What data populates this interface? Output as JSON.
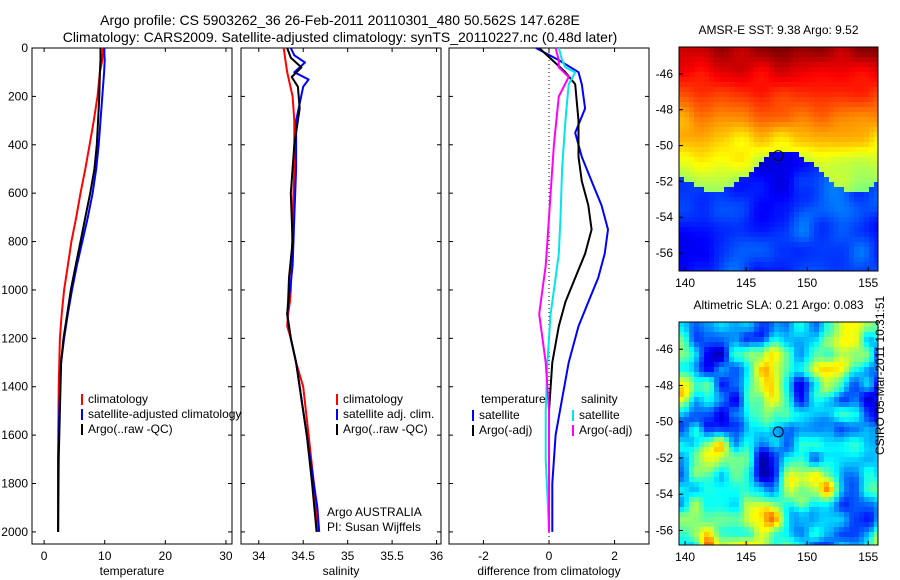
{
  "title": {
    "line1": "Argo profile: CS 5903262_36 26-Feb-2011 20110301_480 50.562S 147.628E",
    "line2": "Climatology: CARS2009. Satellite-adjusted climatology: synTS_20110227.nc (0.48d later)"
  },
  "stamp": "CSIRO 05-Mar-2011 10:31:51",
  "colors": {
    "climatology": "#ff0000",
    "satellite": "#0000ff",
    "argo": "#000000",
    "sat_diff": "#00e5ee",
    "argo_adj": "#ff00ff"
  },
  "chart_data": [
    {
      "type": "line",
      "id": "temperature",
      "xlabel": "temperature",
      "xlim": [
        -2,
        31
      ],
      "ylim": [
        0,
        2050
      ],
      "xticks": [
        0,
        10,
        20,
        30
      ],
      "yticks": [
        0,
        200,
        400,
        600,
        800,
        1000,
        1200,
        1400,
        1600,
        1800,
        2000
      ],
      "legend": [
        "climatology",
        "satellite-adjusted climatology",
        "Argo(..raw -QC)"
      ],
      "series": [
        {
          "name": "climatology",
          "color": "#ff0000",
          "x": [
            9.7,
            9.6,
            9.2,
            8.8,
            8.2,
            7.5,
            6.8,
            6.0,
            5.3,
            4.5,
            3.9,
            3.3,
            2.9,
            2.6,
            2.4,
            2.3,
            2.3
          ],
          "y": [
            0,
            50,
            100,
            200,
            300,
            400,
            500,
            600,
            700,
            800,
            900,
            1000,
            1100,
            1200,
            1400,
            1700,
            2000
          ]
        },
        {
          "name": "satellite-adjusted climatology",
          "color": "#0000ff",
          "x": [
            9.9,
            10.0,
            9.9,
            9.6,
            9.3,
            9.0,
            8.6,
            8.0,
            7.2,
            6.3,
            5.4,
            4.6,
            3.9,
            3.3,
            2.8,
            2.5,
            2.3,
            2.3
          ],
          "y": [
            0,
            50,
            100,
            200,
            300,
            400,
            500,
            600,
            700,
            800,
            900,
            1000,
            1100,
            1200,
            1300,
            1500,
            1700,
            2000
          ]
        },
        {
          "name": "Argo(..raw -QC)",
          "color": "#000000",
          "x": [
            9.3,
            9.3,
            9.2,
            9.1,
            8.9,
            8.7,
            8.3,
            7.6,
            6.8,
            6.0,
            5.2,
            4.4,
            3.8,
            3.2,
            2.8,
            2.6,
            2.4,
            2.3
          ],
          "y": [
            0,
            50,
            100,
            200,
            300,
            400,
            500,
            600,
            700,
            800,
            900,
            1000,
            1100,
            1200,
            1300,
            1500,
            1700,
            2000
          ]
        }
      ]
    },
    {
      "type": "line",
      "id": "salinity",
      "xlabel": "salinity",
      "xlim": [
        33.8,
        36.05
      ],
      "ylim": [
        0,
        2050
      ],
      "xticks": [
        34,
        34.5,
        35,
        35.5,
        36
      ],
      "legend": [
        "climatology",
        "satellite adj. clim.",
        "Argo(..raw -QC)"
      ],
      "annotation": [
        "Argo AUSTRALIA",
        "PI: Susan Wijffels"
      ],
      "series": [
        {
          "name": "climatology",
          "color": "#ff0000",
          "x": [
            34.28,
            34.3,
            34.32,
            34.35,
            34.38,
            34.4,
            34.4,
            34.38,
            34.37,
            34.36,
            34.35,
            34.33,
            34.32,
            34.36,
            34.42,
            34.5,
            34.56,
            34.62,
            34.66
          ],
          "y": [
            0,
            50,
            100,
            150,
            200,
            300,
            500,
            700,
            900,
            1000,
            1050,
            1100,
            1150,
            1200,
            1300,
            1400,
            1600,
            1800,
            2000
          ]
        },
        {
          "name": "satellite adj. clim.",
          "color": "#0000ff",
          "x": [
            34.36,
            34.4,
            34.52,
            34.4,
            34.56,
            34.5,
            34.42,
            34.42,
            34.4,
            34.38,
            34.35,
            34.32,
            34.36,
            34.42,
            34.46,
            34.5,
            34.58,
            34.66,
            34.68
          ],
          "y": [
            0,
            30,
            60,
            100,
            130,
            160,
            300,
            500,
            700,
            900,
            1000,
            1100,
            1200,
            1300,
            1400,
            1500,
            1700,
            1900,
            2000
          ]
        },
        {
          "name": "Argo(..raw -QC)",
          "color": "#000000",
          "x": [
            34.32,
            34.36,
            34.48,
            34.37,
            34.44,
            34.46,
            34.4,
            34.36,
            34.38,
            34.34,
            34.33,
            34.32,
            34.36,
            34.42,
            34.48,
            34.54,
            34.6,
            34.65
          ],
          "y": [
            0,
            40,
            80,
            120,
            160,
            250,
            400,
            600,
            800,
            950,
            1050,
            1100,
            1200,
            1300,
            1450,
            1600,
            1800,
            2000
          ]
        }
      ]
    },
    {
      "type": "line",
      "id": "difference",
      "xlabel": "difference from climatology",
      "xlim": [
        -3.05,
        3.05
      ],
      "ylim": [
        0,
        2050
      ],
      "xticks": [
        -2,
        0,
        2
      ],
      "legend_groups": [
        {
          "heading": "temperature",
          "items": [
            "satellite",
            "Argo(-adj)"
          ]
        },
        {
          "heading": "salinity",
          "items": [
            "satellite",
            "Argo(-adj)"
          ]
        }
      ],
      "series": [
        {
          "name": "temperature satellite",
          "color": "#0000ff",
          "x": [
            -0.4,
            0.3,
            0.9,
            1.0,
            1.1,
            0.8,
            1.0,
            1.3,
            1.6,
            1.8,
            1.7,
            1.5,
            1.2,
            0.9,
            0.6,
            0.4,
            0.2,
            0.1,
            0.1
          ],
          "y": [
            0,
            50,
            100,
            150,
            250,
            350,
            450,
            550,
            650,
            750,
            850,
            950,
            1050,
            1150,
            1300,
            1450,
            1600,
            1800,
            2000
          ]
        },
        {
          "name": "temperature Argo(-adj)",
          "color": "#000000",
          "x": [
            -0.3,
            0.1,
            0.5,
            0.8,
            0.9,
            0.9,
            1.0,
            1.2,
            1.3,
            1.1,
            0.8,
            0.5,
            0.3,
            0.1,
            0.0,
            0.0,
            0.0
          ],
          "y": [
            0,
            50,
            100,
            150,
            300,
            450,
            550,
            650,
            750,
            850,
            950,
            1050,
            1150,
            1300,
            1500,
            1700,
            2000
          ]
        },
        {
          "name": "salinity satellite",
          "color": "#00e5ee",
          "x": [
            0.3,
            0.4,
            0.5,
            0.8,
            0.6,
            0.5,
            0.4,
            0.35,
            0.3,
            0.2,
            0.05,
            -0.05,
            -0.1,
            -0.1,
            -0.05,
            0.0
          ],
          "y": [
            0,
            50,
            80,
            100,
            150,
            300,
            500,
            700,
            850,
            950,
            1100,
            1300,
            1500,
            1700,
            1850,
            2000
          ]
        },
        {
          "name": "salinity Argo(-adj)",
          "color": "#ff00ff",
          "x": [
            0.2,
            0.3,
            0.3,
            0.6,
            0.3,
            0.15,
            0.05,
            -0.05,
            -0.1,
            -0.2,
            -0.3,
            -0.1,
            0.0,
            0.0
          ],
          "y": [
            0,
            50,
            80,
            120,
            200,
            400,
            600,
            800,
            900,
            1000,
            1100,
            1300,
            1500,
            2000
          ]
        }
      ]
    },
    {
      "type": "heatmap",
      "id": "sst_map",
      "title": "AMSR-E SST: 9.38  Argo: 9.52",
      "xticks": [
        140,
        145,
        150,
        155
      ],
      "yticks": [
        -46,
        -48,
        -50,
        -52,
        -54,
        -56
      ],
      "xlim": [
        139.5,
        155.8
      ],
      "ylim": [
        -57,
        -44.5
      ],
      "marker": {
        "lon": 147.628,
        "lat": -50.562
      }
    },
    {
      "type": "heatmap",
      "id": "sla_map",
      "title": "Altimetric SLA: 0.21  Argo: 0.083",
      "xticks": [
        140,
        145,
        150,
        155
      ],
      "yticks": [
        -46,
        -48,
        -50,
        -52,
        -54,
        -56
      ],
      "xlim": [
        139.5,
        155.8
      ],
      "ylim": [
        -56.8,
        -44.5
      ],
      "marker": {
        "lon": 147.628,
        "lat": -50.562
      }
    }
  ]
}
